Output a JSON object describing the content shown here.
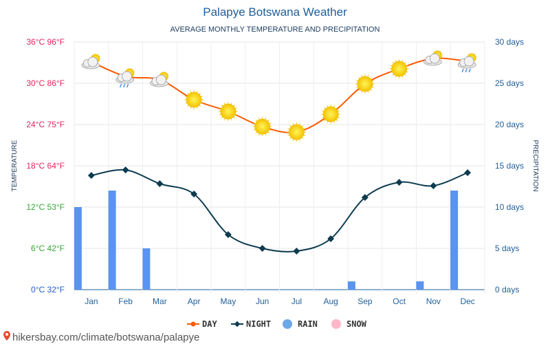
{
  "title": "Palapye Botswana Weather",
  "subtitle": "AVERAGE MONTHLY TEMPERATURE AND PRECIPITATION",
  "left_axis_title": "TEMPERATURE",
  "right_axis_title": "PRECIPITATION",
  "footer": "hikersbay.com/climate/botswana/palapye",
  "legend": [
    {
      "key": "day",
      "label": "DAY",
      "color": "#ff5a00"
    },
    {
      "key": "night",
      "label": "NIGHT",
      "color": "#0d3b4f"
    },
    {
      "key": "rain",
      "label": "RAIN",
      "color": "#6fa8e8"
    },
    {
      "key": "snow",
      "label": "SNOW",
      "color": "#ffb6c8"
    }
  ],
  "left_ticks": [
    {
      "label": "0°C 32°F",
      "value": 0,
      "color": "#1f5dcc"
    },
    {
      "label": "6°C 42°F",
      "value": 6,
      "color": "#33a833"
    },
    {
      "label": "12°C 53°F",
      "value": 12,
      "color": "#33a833"
    },
    {
      "label": "18°C 64°F",
      "value": 18,
      "color": "#e0245e"
    },
    {
      "label": "24°C 75°F",
      "value": 24,
      "color": "#e0245e"
    },
    {
      "label": "30°C 86°F",
      "value": 30,
      "color": "#e0245e"
    },
    {
      "label": "36°C 96°F",
      "value": 36,
      "color": "#e0245e"
    }
  ],
  "right_ticks": [
    {
      "label": "0 days",
      "value": 0
    },
    {
      "label": "5 days",
      "value": 5
    },
    {
      "label": "10 days",
      "value": 10
    },
    {
      "label": "15 days",
      "value": 15
    },
    {
      "label": "20 days",
      "value": 20
    },
    {
      "label": "25 days",
      "value": 25
    },
    {
      "label": "30 days",
      "value": 30
    }
  ],
  "chart_data": {
    "type": "line",
    "categories": [
      "Jan",
      "Feb",
      "Mar",
      "Apr",
      "May",
      "Jun",
      "Jul",
      "Aug",
      "Sep",
      "Oct",
      "Nov",
      "Dec"
    ],
    "ylim_temperature_c": [
      0,
      36
    ],
    "ylim_precipitation_days": [
      0,
      30
    ],
    "grid": true,
    "legend_position": "bottom",
    "series": [
      {
        "name": "DAY",
        "axis": "left",
        "color": "#ff5a00",
        "values": [
          33.1,
          31.0,
          30.5,
          27.6,
          25.9,
          23.7,
          22.9,
          25.5,
          29.9,
          32.1,
          33.6,
          33.2
        ],
        "icons": [
          "sun-cloud-icon",
          "sun-cloud-rain-icon",
          "sun-cloud-icon",
          "sun-icon",
          "sun-icon",
          "sun-icon",
          "sun-icon",
          "sun-icon",
          "sun-icon",
          "sun-icon",
          "sun-cloud-icon",
          "sun-cloud-rain-icon"
        ]
      },
      {
        "name": "NIGHT",
        "axis": "left",
        "color": "#0d3b4f",
        "values": [
          16.6,
          17.4,
          15.4,
          13.9,
          8.0,
          6.0,
          5.6,
          7.4,
          13.4,
          15.6,
          15.1,
          17.0
        ]
      },
      {
        "name": "RAIN",
        "axis": "right",
        "type": "bar",
        "color": "#5a93f0",
        "values": [
          10,
          12,
          5,
          0,
          0,
          0,
          0,
          0,
          1,
          0,
          1,
          12
        ]
      },
      {
        "name": "SNOW",
        "axis": "right",
        "type": "bar",
        "color": "#ffb6c8",
        "values": [
          0,
          0,
          0,
          0,
          0,
          0,
          0,
          0,
          0,
          0,
          0,
          0
        ]
      }
    ]
  }
}
